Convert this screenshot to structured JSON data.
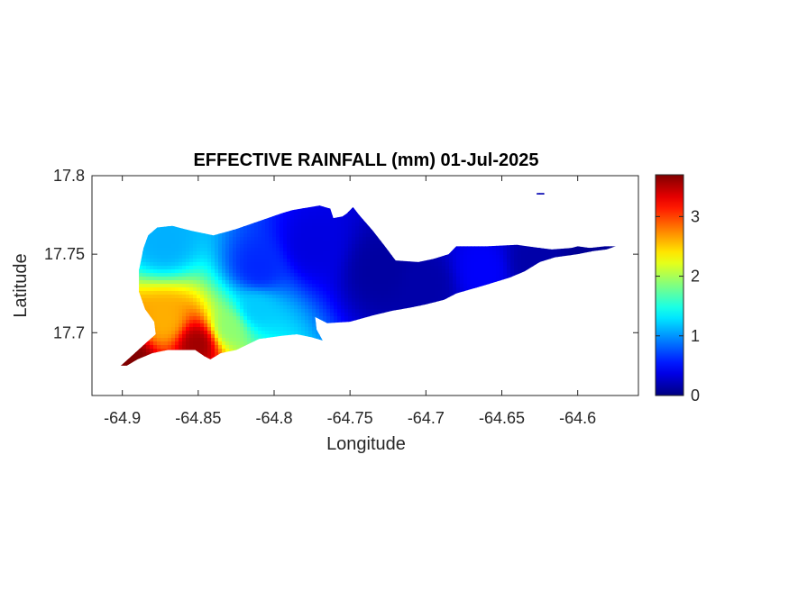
{
  "chart_data": {
    "type": "heatmap",
    "title": "EFFECTIVE RAINFALL (mm) 01-Jul-2025",
    "xlabel": "Longitude",
    "ylabel": "Latitude",
    "xlim": [
      -64.92,
      -64.56
    ],
    "ylim": [
      17.66,
      17.8
    ],
    "xticks": [
      -64.9,
      -64.85,
      -64.8,
      -64.75,
      -64.7,
      -64.65,
      -64.6
    ],
    "xtick_labels": [
      "-64.9",
      "-64.85",
      "-64.8",
      "-64.75",
      "-64.7",
      "-64.65",
      "-64.6"
    ],
    "yticks": [
      17.7,
      17.75,
      17.8
    ],
    "ytick_labels": [
      "17.7",
      "17.75",
      "17.8"
    ],
    "colorbar": {
      "colormap": "jet",
      "range": [
        0,
        3.7
      ],
      "ticks": [
        0,
        1,
        2,
        3
      ],
      "tick_labels": [
        "0",
        "1",
        "2",
        "3"
      ]
    },
    "field_hotspots": [
      {
        "lon": -64.85,
        "lat": 17.693,
        "value": 3.6
      },
      {
        "lon": -64.895,
        "lat": 17.683,
        "value": 3.7
      },
      {
        "lon": -64.872,
        "lat": 17.707,
        "value": 2.6
      },
      {
        "lon": -64.83,
        "lat": 17.703,
        "value": 1.9
      },
      {
        "lon": -64.812,
        "lat": 17.715,
        "value": 1.2
      },
      {
        "lon": -64.872,
        "lat": 17.758,
        "value": 1.1
      },
      {
        "lon": -64.81,
        "lat": 17.74,
        "value": 0.6
      },
      {
        "lon": -64.775,
        "lat": 17.755,
        "value": 0.35
      },
      {
        "lon": -64.73,
        "lat": 17.74,
        "value": 0.12
      },
      {
        "lon": -64.7,
        "lat": 17.73,
        "value": 0.15
      },
      {
        "lon": -64.662,
        "lat": 17.74,
        "value": 0.45
      },
      {
        "lon": -64.63,
        "lat": 17.745,
        "value": 0.15
      },
      {
        "lon": -64.59,
        "lat": 17.752,
        "value": 0.08
      }
    ],
    "field_background": 0.25,
    "island_outline": [
      [
        -64.901,
        17.679
      ],
      [
        -64.893,
        17.686
      ],
      [
        -64.885,
        17.693
      ],
      [
        -64.878,
        17.699
      ],
      [
        -64.879,
        17.707
      ],
      [
        -64.885,
        17.715
      ],
      [
        -64.889,
        17.726
      ],
      [
        -64.889,
        17.74
      ],
      [
        -64.886,
        17.754
      ],
      [
        -64.883,
        17.762
      ],
      [
        -64.877,
        17.767
      ],
      [
        -64.867,
        17.768
      ],
      [
        -64.855,
        17.765
      ],
      [
        -64.84,
        17.762
      ],
      [
        -64.825,
        17.766
      ],
      [
        -64.81,
        17.771
      ],
      [
        -64.795,
        17.776
      ],
      [
        -64.788,
        17.778
      ],
      [
        -64.77,
        17.781
      ],
      [
        -64.763,
        17.779
      ],
      [
        -64.761,
        17.773
      ],
      [
        -64.755,
        17.774
      ],
      [
        -64.752,
        17.776
      ],
      [
        -64.748,
        17.78
      ],
      [
        -64.744,
        17.775
      ],
      [
        -64.735,
        17.765
      ],
      [
        -64.727,
        17.755
      ],
      [
        -64.72,
        17.746
      ],
      [
        -64.705,
        17.745
      ],
      [
        -64.695,
        17.747
      ],
      [
        -64.685,
        17.75
      ],
      [
        -64.68,
        17.755
      ],
      [
        -64.66,
        17.755
      ],
      [
        -64.64,
        17.756
      ],
      [
        -64.625,
        17.754
      ],
      [
        -64.617,
        17.753
      ],
      [
        -64.604,
        17.754
      ],
      [
        -64.6,
        17.755
      ],
      [
        -64.592,
        17.754
      ],
      [
        -64.582,
        17.755
      ],
      [
        -64.575,
        17.755
      ],
      [
        -64.581,
        17.753
      ],
      [
        -64.59,
        17.752
      ],
      [
        -64.6,
        17.75
      ],
      [
        -64.615,
        17.748
      ],
      [
        -64.625,
        17.745
      ],
      [
        -64.635,
        17.739
      ],
      [
        -64.645,
        17.735
      ],
      [
        -64.662,
        17.73
      ],
      [
        -64.68,
        17.725
      ],
      [
        -64.688,
        17.721
      ],
      [
        -64.7,
        17.718
      ],
      [
        -64.71,
        17.716
      ],
      [
        -64.722,
        17.714
      ],
      [
        -64.735,
        17.711
      ],
      [
        -64.75,
        17.707
      ],
      [
        -64.765,
        17.706
      ],
      [
        -64.773,
        17.71
      ],
      [
        -64.772,
        17.702
      ],
      [
        -64.768,
        17.695
      ],
      [
        -64.775,
        17.697
      ],
      [
        -64.785,
        17.699
      ],
      [
        -64.795,
        17.698
      ],
      [
        -64.81,
        17.696
      ],
      [
        -64.825,
        17.689
      ],
      [
        -64.835,
        17.687
      ],
      [
        -64.842,
        17.683
      ],
      [
        -64.846,
        17.685
      ],
      [
        -64.852,
        17.689
      ],
      [
        -64.87,
        17.689
      ],
      [
        -64.88,
        17.687
      ],
      [
        -64.89,
        17.683
      ],
      [
        -64.897,
        17.679
      ]
    ],
    "islet_outline": [
      [
        -64.627,
        17.789
      ],
      [
        -64.622,
        17.789
      ],
      [
        -64.622,
        17.788
      ],
      [
        -64.627,
        17.788
      ]
    ],
    "grid": false,
    "box": true
  }
}
